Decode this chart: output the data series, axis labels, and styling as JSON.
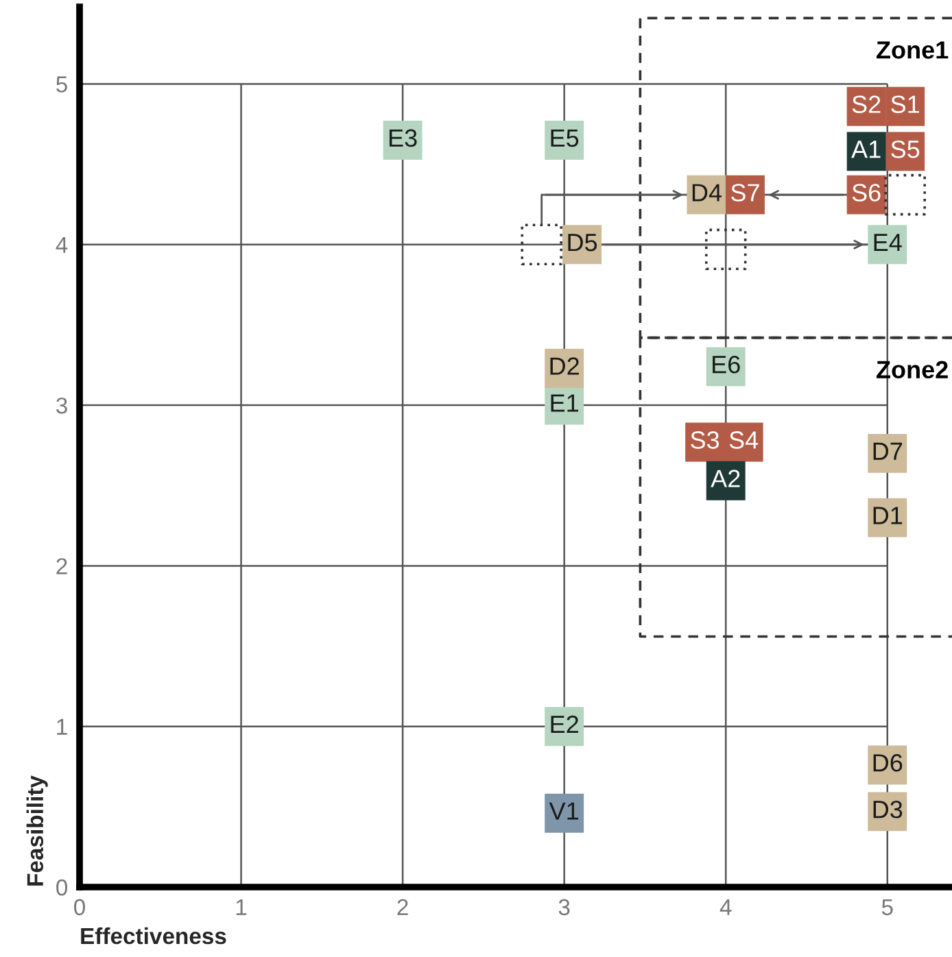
{
  "chart_data": {
    "type": "scatter",
    "xlabel": "Effectiveness",
    "ylabel": "Feasibility",
    "xlim": [
      0,
      5.4
    ],
    "ylim": [
      0,
      5.48
    ],
    "xticks": [
      0,
      1,
      2,
      3,
      4,
      5
    ],
    "yticks": [
      0,
      1,
      2,
      3,
      4,
      5
    ],
    "grid": true,
    "legend": false,
    "marker": "square",
    "series": [
      {
        "type": "line",
        "name": "Zone1",
        "color": "#333333",
        "line_style": "dashed",
        "marker": "none",
        "x": [
          5.4,
          3.47,
          3.47,
          5.4
        ],
        "values": [
          5.41,
          5.41,
          3.42,
          3.42
        ]
      },
      {
        "type": "line",
        "name": "Zone2",
        "color": "#333333",
        "line_style": "dashed",
        "marker": "none",
        "x": [
          5.4,
          3.47,
          3.47,
          5.4
        ],
        "values": [
          3.42,
          3.42,
          1.56,
          1.56
        ]
      },
      {
        "type": "scatter",
        "color": "#333333",
        "line_style": "dotted",
        "x": [
          2.86,
          4.0,
          5.11
        ],
        "values": [
          4.0,
          3.97,
          4.31
        ]
      },
      {
        "type": "line",
        "color": "#555555",
        "marker": "none",
        "x": [
          2.86,
          2.86,
          3.76
        ],
        "values": [
          4.12,
          4.31,
          4.31
        ]
      },
      {
        "type": "line",
        "color": "#555555",
        "marker": "none",
        "x": [
          3.23,
          4.88
        ],
        "values": [
          4.0,
          4.0
        ]
      },
      {
        "type": "line",
        "color": "#555555",
        "marker": "none",
        "x": [
          4.75,
          4.24
        ],
        "values": [
          4.31,
          4.31
        ]
      },
      {
        "color": "#b5d5c0",
        "x": [
          3,
          3,
          2,
          5,
          3,
          4
        ],
        "values": [
          3.0,
          1.0,
          4.65,
          4.0,
          4.65,
          3.24
        ],
        "value_labels": [
          "E1",
          "E2",
          "E3",
          "E4",
          "E5",
          "E6"
        ]
      },
      {
        "color": "#cdbb9a",
        "x": [
          5,
          3,
          5,
          3.88,
          3.11,
          5,
          5
        ],
        "values": [
          2.3,
          3.23,
          0.47,
          4.31,
          4.0,
          0.76,
          2.7
        ],
        "value_labels": [
          "D1",
          "D2",
          "D3",
          "D4",
          "D5",
          "D6",
          "D7"
        ]
      },
      {
        "color": "#b45b47",
        "x": [
          5.11,
          4.87,
          3.87,
          4.11,
          5.11,
          4.87,
          4.12
        ],
        "values": [
          4.86,
          4.86,
          2.77,
          2.77,
          4.58,
          4.31,
          4.31
        ],
        "value_labels": [
          "S1",
          "S2",
          "S3",
          "S4",
          "S5",
          "S6",
          "S7"
        ]
      },
      {
        "color": "#1f3a36",
        "x": [
          4.87,
          4.0
        ],
        "values": [
          4.58,
          2.53
        ],
        "value_labels": [
          "A1",
          "A2"
        ]
      },
      {
        "color": "#7f95aa",
        "x": [
          3
        ],
        "values": [
          0.46
        ],
        "value_labels": [
          "V1"
        ]
      }
    ]
  }
}
